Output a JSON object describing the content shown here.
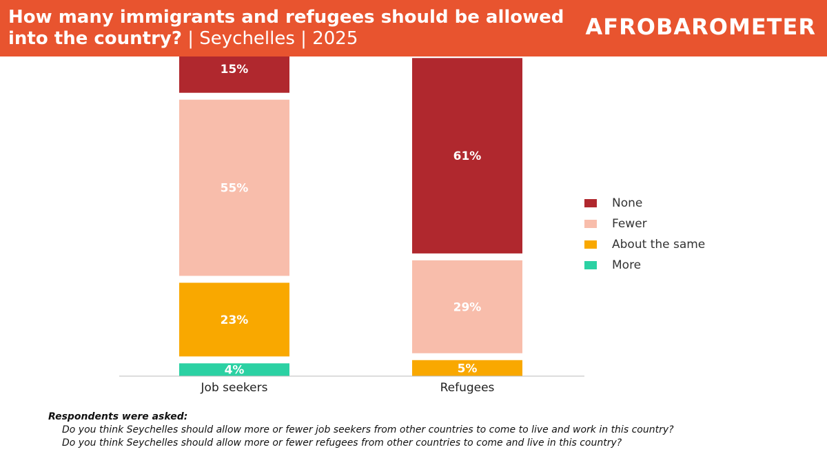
{
  "header": {
    "title_main": "How many immigrants and refugees should be allowed into the country?",
    "title_sub": " | Seychelles | 2025",
    "logo_text": "AFROBAROMETER",
    "bg_color": "#E8542F"
  },
  "chart_data": {
    "type": "bar",
    "stacked": true,
    "categories": [
      "Job seekers",
      "Refugees"
    ],
    "series": [
      {
        "name": "More",
        "values": [
          4,
          0
        ],
        "labels": [
          "4%",
          ""
        ],
        "color": "#2BD1A3"
      },
      {
        "name": "About the same",
        "values": [
          23,
          5
        ],
        "labels": [
          "23%",
          "5%"
        ],
        "color": "#F9A800"
      },
      {
        "name": "Fewer",
        "values": [
          55,
          29
        ],
        "labels": [
          "55%",
          "29%"
        ],
        "color": "#F8BDAB"
      },
      {
        "name": "None",
        "values": [
          15,
          61
        ],
        "labels": [
          "15%",
          "61%"
        ],
        "color": "#B0282E"
      }
    ],
    "legend_order": [
      "None",
      "Fewer",
      "About the same",
      "More"
    ],
    "legend_position": "right",
    "grid": false
  },
  "note": {
    "heading": "Respondents were asked:",
    "questions": [
      "Do you think Seychelles should allow more or fewer job seekers from other countries to come to live and work in this country?",
      "Do you think Seychelles should allow more or fewer refugees from other countries to come and live in this country?"
    ]
  }
}
